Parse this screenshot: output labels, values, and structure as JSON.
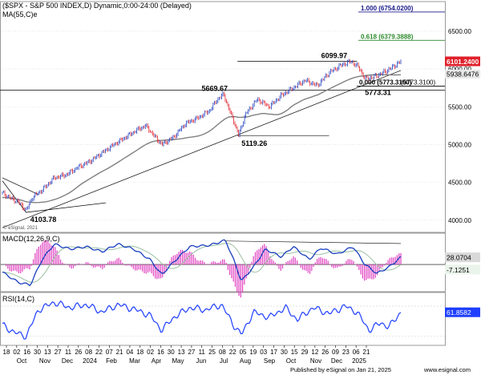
{
  "header": {
    "title": "($SPX - S&P 500 INDEX,D) Dynamic,0:00-24:00 (Delayed)",
    "ma_label": "MA(55,C)e",
    "copyright": "© eSignal, 2021"
  },
  "footer": {
    "credit": "Published by eSignal on Jan 21, 2025",
    "watermark": "www.esignal.com"
  },
  "colors": {
    "candle_up": "#1f3fbf",
    "candle_down": "#e0202a",
    "ma": "#808080",
    "fib_top": "#1a1a8c",
    "fib_mid": "#2e8b2e",
    "macd": "#1a3fbf",
    "signal": "#9ac0a0",
    "hist": "#e040c0",
    "rsi": "#1f3fff"
  },
  "chart_data": [
    {
      "type": "candlestick",
      "name": "S&P 500 price",
      "y_axis_ticks": [
        4000,
        4500,
        5000,
        5500,
        6000,
        6500
      ],
      "ylim": [
        3860,
        6870
      ],
      "x_tick_labels": [
        "18",
        "02",
        "16",
        "30",
        "13",
        "27",
        "11",
        "26",
        "08",
        "22",
        "07",
        "21",
        "04",
        "18",
        "02",
        "16",
        "30",
        "13",
        "27",
        "11",
        "25",
        "08",
        "22",
        "05",
        "19",
        "03",
        "17",
        "30",
        "15",
        "29",
        "12",
        "26",
        "09",
        "23",
        "06",
        "21"
      ],
      "x_month_labels": [
        "Oct",
        "Nov",
        "Dec",
        "2024",
        "Feb",
        "Mar",
        "Apr",
        "May",
        "Jun",
        "Jul",
        "Aug",
        "Sep",
        "Oct",
        "Nov",
        "Dec",
        "2025"
      ],
      "close_path": [
        {
          "t": 0.0,
          "v": 4360
        },
        {
          "t": 0.02,
          "v": 4290
        },
        {
          "t": 0.04,
          "v": 4240
        },
        {
          "t": 0.06,
          "v": 4130
        },
        {
          "t": 0.075,
          "v": 4300
        },
        {
          "t": 0.1,
          "v": 4400
        },
        {
          "t": 0.13,
          "v": 4560
        },
        {
          "t": 0.16,
          "v": 4600
        },
        {
          "t": 0.19,
          "v": 4700
        },
        {
          "t": 0.22,
          "v": 4780
        },
        {
          "t": 0.25,
          "v": 4890
        },
        {
          "t": 0.28,
          "v": 5000
        },
        {
          "t": 0.31,
          "v": 5100
        },
        {
          "t": 0.34,
          "v": 5200
        },
        {
          "t": 0.36,
          "v": 5250
        },
        {
          "t": 0.38,
          "v": 5120
        },
        {
          "t": 0.4,
          "v": 5000
        },
        {
          "t": 0.43,
          "v": 5100
        },
        {
          "t": 0.46,
          "v": 5280
        },
        {
          "t": 0.49,
          "v": 5350
        },
        {
          "t": 0.52,
          "v": 5450
        },
        {
          "t": 0.54,
          "v": 5600
        },
        {
          "t": 0.555,
          "v": 5669
        },
        {
          "t": 0.57,
          "v": 5450
        },
        {
          "t": 0.585,
          "v": 5250
        },
        {
          "t": 0.593,
          "v": 5119
        },
        {
          "t": 0.61,
          "v": 5400
        },
        {
          "t": 0.64,
          "v": 5600
        },
        {
          "t": 0.67,
          "v": 5500
        },
        {
          "t": 0.7,
          "v": 5650
        },
        {
          "t": 0.73,
          "v": 5750
        },
        {
          "t": 0.76,
          "v": 5850
        },
        {
          "t": 0.79,
          "v": 5780
        },
        {
          "t": 0.82,
          "v": 5950
        },
        {
          "t": 0.85,
          "v": 6050
        },
        {
          "t": 0.875,
          "v": 6100
        },
        {
          "t": 0.895,
          "v": 6020
        },
        {
          "t": 0.91,
          "v": 5870
        },
        {
          "t": 0.935,
          "v": 5900
        },
        {
          "t": 0.955,
          "v": 5950
        },
        {
          "t": 0.975,
          "v": 6010
        },
        {
          "t": 1.0,
          "v": 6101
        }
      ],
      "last_price": "6101.2400",
      "ma_value": "5938.6476",
      "fib_levels": [
        {
          "ratio": "1.000",
          "value": 6754.02,
          "label": "1.000 (6754.0200)"
        },
        {
          "ratio": "0.618",
          "value": 6379.3888,
          "label": "0.618 (6379.3888)"
        },
        {
          "ratio": "0.000",
          "value": 5773.31,
          "label": "0.000 (5773.3100)"
        }
      ],
      "annotations": [
        {
          "text": "6099.97",
          "value": 6099.97
        },
        {
          "text": "5669.67",
          "value": 5669.67
        },
        {
          "text": "5773.31",
          "value": 5773.31
        },
        {
          "text": "5119.26",
          "value": 5119.26
        },
        {
          "text": "4103.78",
          "value": 4103.78
        }
      ],
      "overlay_label": "(5773.3100)"
    },
    {
      "type": "line",
      "name": "MACD",
      "label": "MACD(12,26,9,C)",
      "series_values": {
        "macd": "28.0704",
        "signal": "-7.1251"
      },
      "macd_path": [
        {
          "t": 0.0,
          "v": -30
        },
        {
          "t": 0.04,
          "v": -70
        },
        {
          "t": 0.07,
          "v": -80
        },
        {
          "t": 0.1,
          "v": 20
        },
        {
          "t": 0.13,
          "v": 80
        },
        {
          "t": 0.17,
          "v": 60
        },
        {
          "t": 0.21,
          "v": 70
        },
        {
          "t": 0.25,
          "v": 50
        },
        {
          "t": 0.29,
          "v": 80
        },
        {
          "t": 0.33,
          "v": 60
        },
        {
          "t": 0.37,
          "v": 20
        },
        {
          "t": 0.4,
          "v": -40
        },
        {
          "t": 0.43,
          "v": 10
        },
        {
          "t": 0.47,
          "v": 70
        },
        {
          "t": 0.52,
          "v": 75
        },
        {
          "t": 0.56,
          "v": 95
        },
        {
          "t": 0.58,
          "v": 20
        },
        {
          "t": 0.6,
          "v": -65
        },
        {
          "t": 0.63,
          "v": -10
        },
        {
          "t": 0.66,
          "v": 60
        },
        {
          "t": 0.7,
          "v": 30
        },
        {
          "t": 0.73,
          "v": 70
        },
        {
          "t": 0.77,
          "v": 20
        },
        {
          "t": 0.8,
          "v": 65
        },
        {
          "t": 0.84,
          "v": 40
        },
        {
          "t": 0.88,
          "v": 70
        },
        {
          "t": 0.91,
          "v": 0
        },
        {
          "t": 0.94,
          "v": -35
        },
        {
          "t": 0.97,
          "v": -10
        },
        {
          "t": 1.0,
          "v": 28
        }
      ],
      "ylim": [
        -100,
        110
      ]
    },
    {
      "type": "line",
      "name": "RSI",
      "label": "RSI(14,C)",
      "series_values": {
        "rsi": "61.8582"
      },
      "rsi_path": [
        {
          "t": 0.0,
          "v": 45
        },
        {
          "t": 0.03,
          "v": 35
        },
        {
          "t": 0.06,
          "v": 30
        },
        {
          "t": 0.09,
          "v": 65
        },
        {
          "t": 0.13,
          "v": 75
        },
        {
          "t": 0.17,
          "v": 68
        },
        {
          "t": 0.21,
          "v": 72
        },
        {
          "t": 0.25,
          "v": 62
        },
        {
          "t": 0.29,
          "v": 72
        },
        {
          "t": 0.33,
          "v": 66
        },
        {
          "t": 0.37,
          "v": 58
        },
        {
          "t": 0.4,
          "v": 38
        },
        {
          "t": 0.43,
          "v": 55
        },
        {
          "t": 0.47,
          "v": 68
        },
        {
          "t": 0.51,
          "v": 65
        },
        {
          "t": 0.55,
          "v": 72
        },
        {
          "t": 0.58,
          "v": 45
        },
        {
          "t": 0.6,
          "v": 32
        },
        {
          "t": 0.63,
          "v": 62
        },
        {
          "t": 0.67,
          "v": 55
        },
        {
          "t": 0.71,
          "v": 68
        },
        {
          "t": 0.74,
          "v": 52
        },
        {
          "t": 0.78,
          "v": 68
        },
        {
          "t": 0.82,
          "v": 60
        },
        {
          "t": 0.86,
          "v": 70
        },
        {
          "t": 0.89,
          "v": 62
        },
        {
          "t": 0.92,
          "v": 38
        },
        {
          "t": 0.95,
          "v": 48
        },
        {
          "t": 0.97,
          "v": 42
        },
        {
          "t": 1.0,
          "v": 62
        }
      ],
      "ylim": [
        20,
        85
      ]
    }
  ]
}
